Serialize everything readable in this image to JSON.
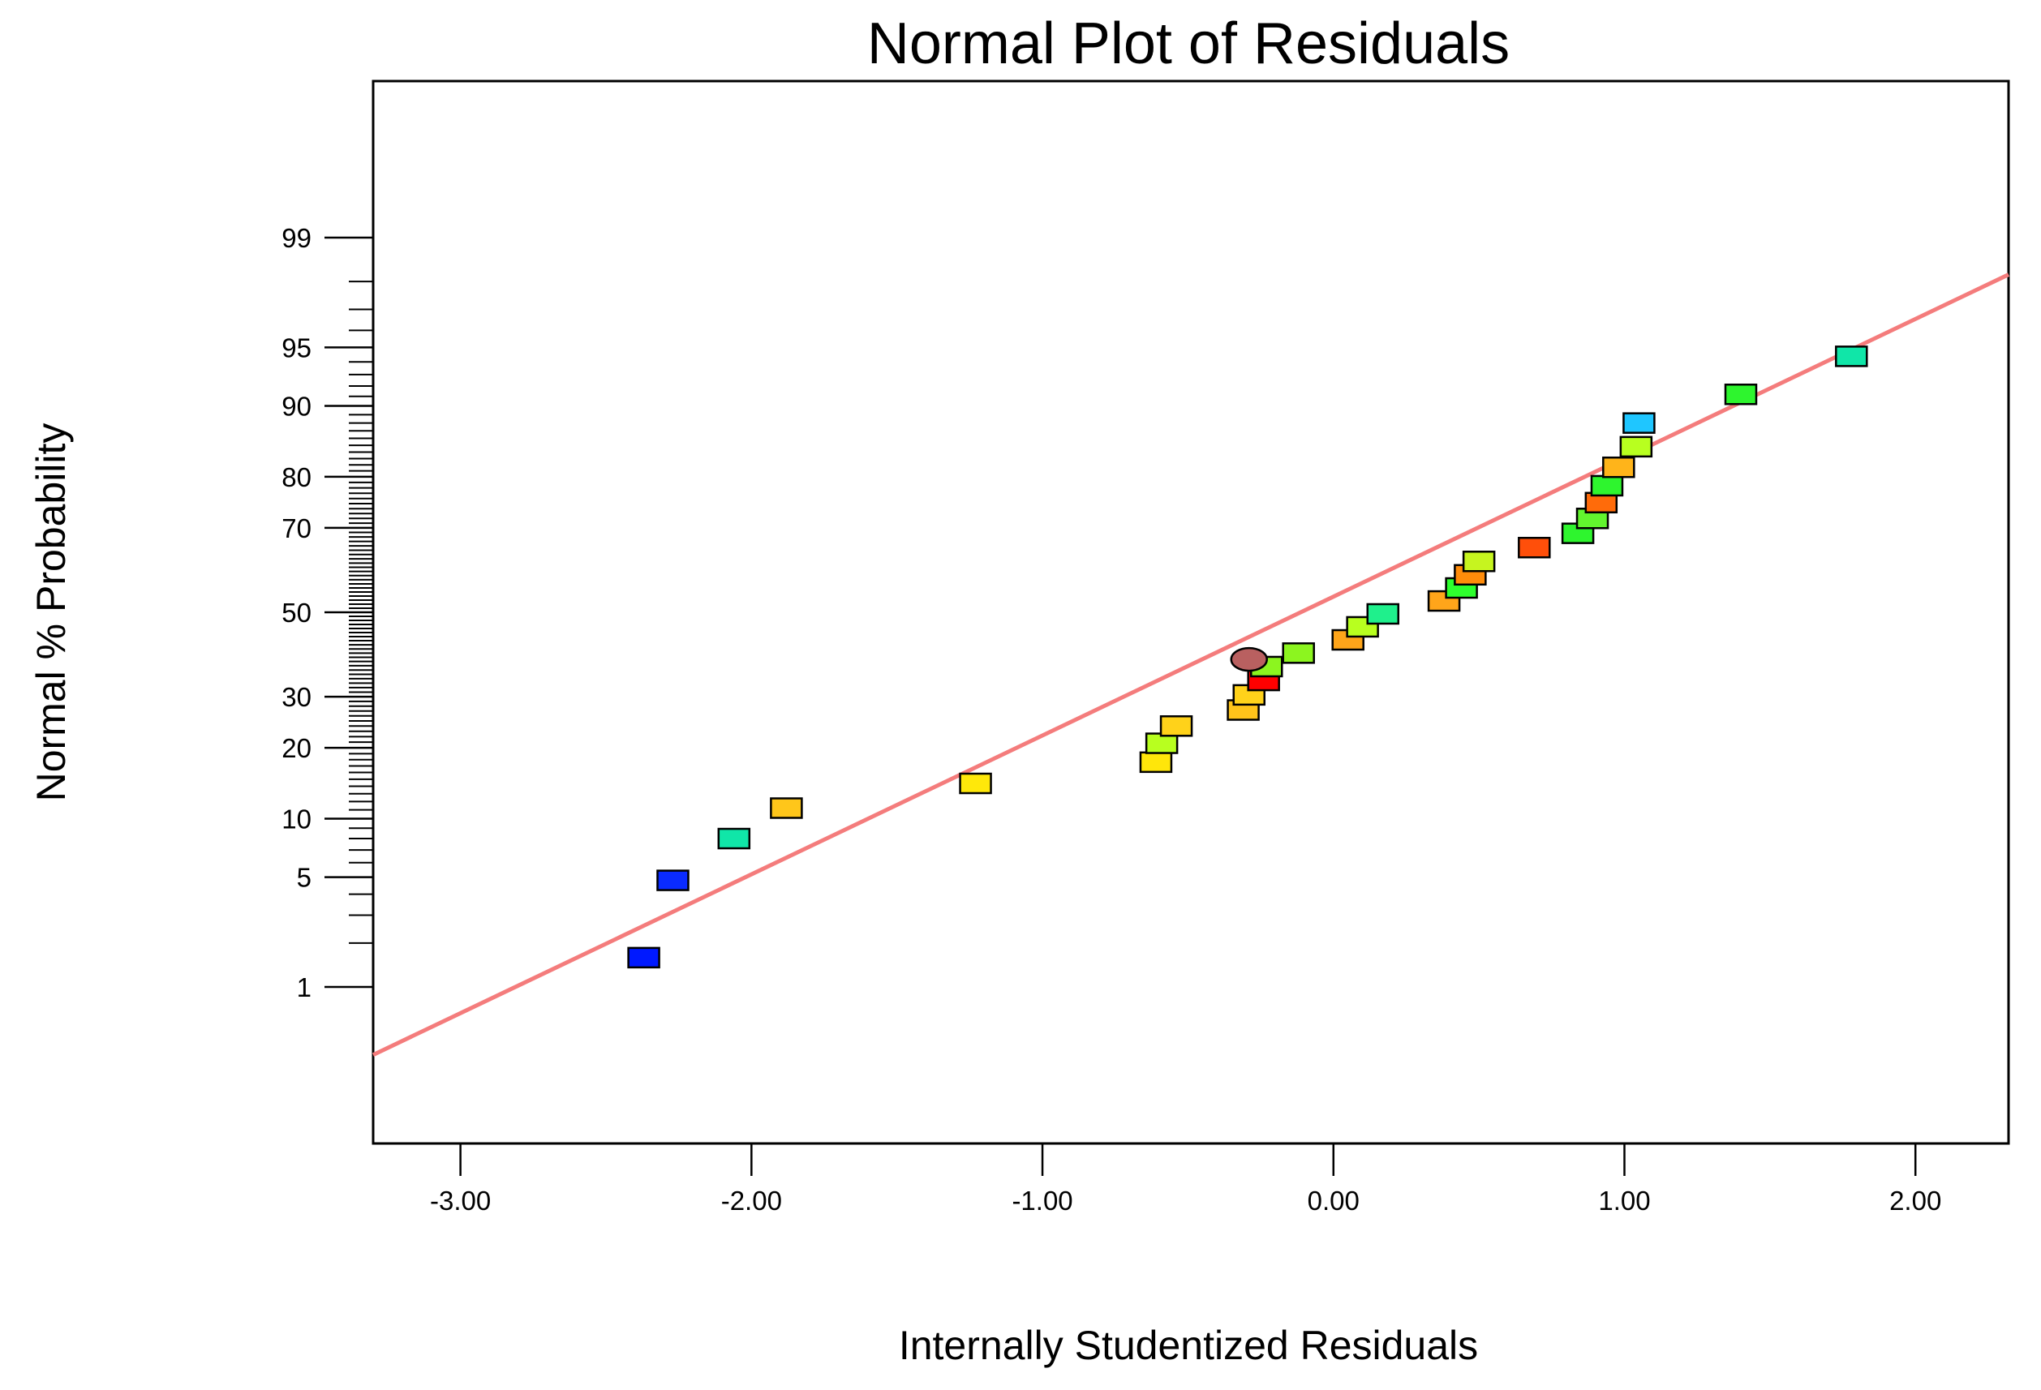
{
  "chart_data": {
    "type": "scatter",
    "title": "Normal Plot of Residuals",
    "xlabel": "Internally Studentized Residuals",
    "ylabel": "Normal % Probability",
    "xlim": [
      -3.3,
      2.32
    ],
    "x_ticks": [
      "-3.00",
      "-2.00",
      "-1.00",
      "0.00",
      "1.00",
      "2.00"
    ],
    "y_scale": "normal-probability",
    "y_ticks": [
      "1",
      "5",
      "10",
      "20",
      "30",
      "50",
      "70",
      "80",
      "90",
      "95",
      "99"
    ],
    "reference_line": {
      "color": "#f47c7c",
      "from": [
        -3.3,
        0.3
      ],
      "to": [
        2.32,
        98.2
      ]
    },
    "points": [
      {
        "x": -2.37,
        "y": 1.6,
        "color": "#0019ff"
      },
      {
        "x": -2.27,
        "y": 4.8,
        "color": "#0a2bff"
      },
      {
        "x": -2.06,
        "y": 8.0,
        "color": "#10e6a8"
      },
      {
        "x": -1.88,
        "y": 11.2,
        "color": "#ffc61a"
      },
      {
        "x": -1.23,
        "y": 14.4,
        "color": "#ffe80a"
      },
      {
        "x": -0.61,
        "y": 17.6,
        "color": "#ffe60a"
      },
      {
        "x": -0.59,
        "y": 20.8,
        "color": "#b8ff1f"
      },
      {
        "x": -0.54,
        "y": 24.0,
        "color": "#ffd21a"
      },
      {
        "x": -0.31,
        "y": 27.2,
        "color": "#ffc41a"
      },
      {
        "x": -0.29,
        "y": 30.4,
        "color": "#ffd21a"
      },
      {
        "x": -0.24,
        "y": 33.6,
        "color": "#ff0000"
      },
      {
        "x": -0.23,
        "y": 36.8,
        "color": "#8cf51f"
      },
      {
        "x": -0.29,
        "y": 38.5,
        "color": "#b96060",
        "shape": "circle"
      },
      {
        "x": -0.12,
        "y": 40.0,
        "color": "#8cf51f"
      },
      {
        "x": 0.05,
        "y": 43.2,
        "color": "#ffa51a"
      },
      {
        "x": 0.1,
        "y": 46.4,
        "color": "#b8ff1f"
      },
      {
        "x": 0.17,
        "y": 49.6,
        "color": "#1ff08c"
      },
      {
        "x": 0.38,
        "y": 52.8,
        "color": "#ffa51a"
      },
      {
        "x": 0.44,
        "y": 56.0,
        "color": "#2eff2e"
      },
      {
        "x": 0.47,
        "y": 59.2,
        "color": "#ff8c0a"
      },
      {
        "x": 0.5,
        "y": 62.4,
        "color": "#c6f51f"
      },
      {
        "x": 0.69,
        "y": 65.6,
        "color": "#ff4f0a"
      },
      {
        "x": 0.84,
        "y": 68.8,
        "color": "#2ef52e"
      },
      {
        "x": 0.89,
        "y": 72.0,
        "color": "#62f52e"
      },
      {
        "x": 0.92,
        "y": 75.2,
        "color": "#ff6b0a"
      },
      {
        "x": 0.94,
        "y": 78.4,
        "color": "#2ef52e"
      },
      {
        "x": 0.98,
        "y": 81.6,
        "color": "#ffb41a"
      },
      {
        "x": 1.04,
        "y": 84.8,
        "color": "#b8ff1f"
      },
      {
        "x": 1.05,
        "y": 88.0,
        "color": "#1fc6ff"
      },
      {
        "x": 1.4,
        "y": 91.2,
        "color": "#2ef52e"
      },
      {
        "x": 1.78,
        "y": 94.4,
        "color": "#10e6a8"
      }
    ]
  }
}
